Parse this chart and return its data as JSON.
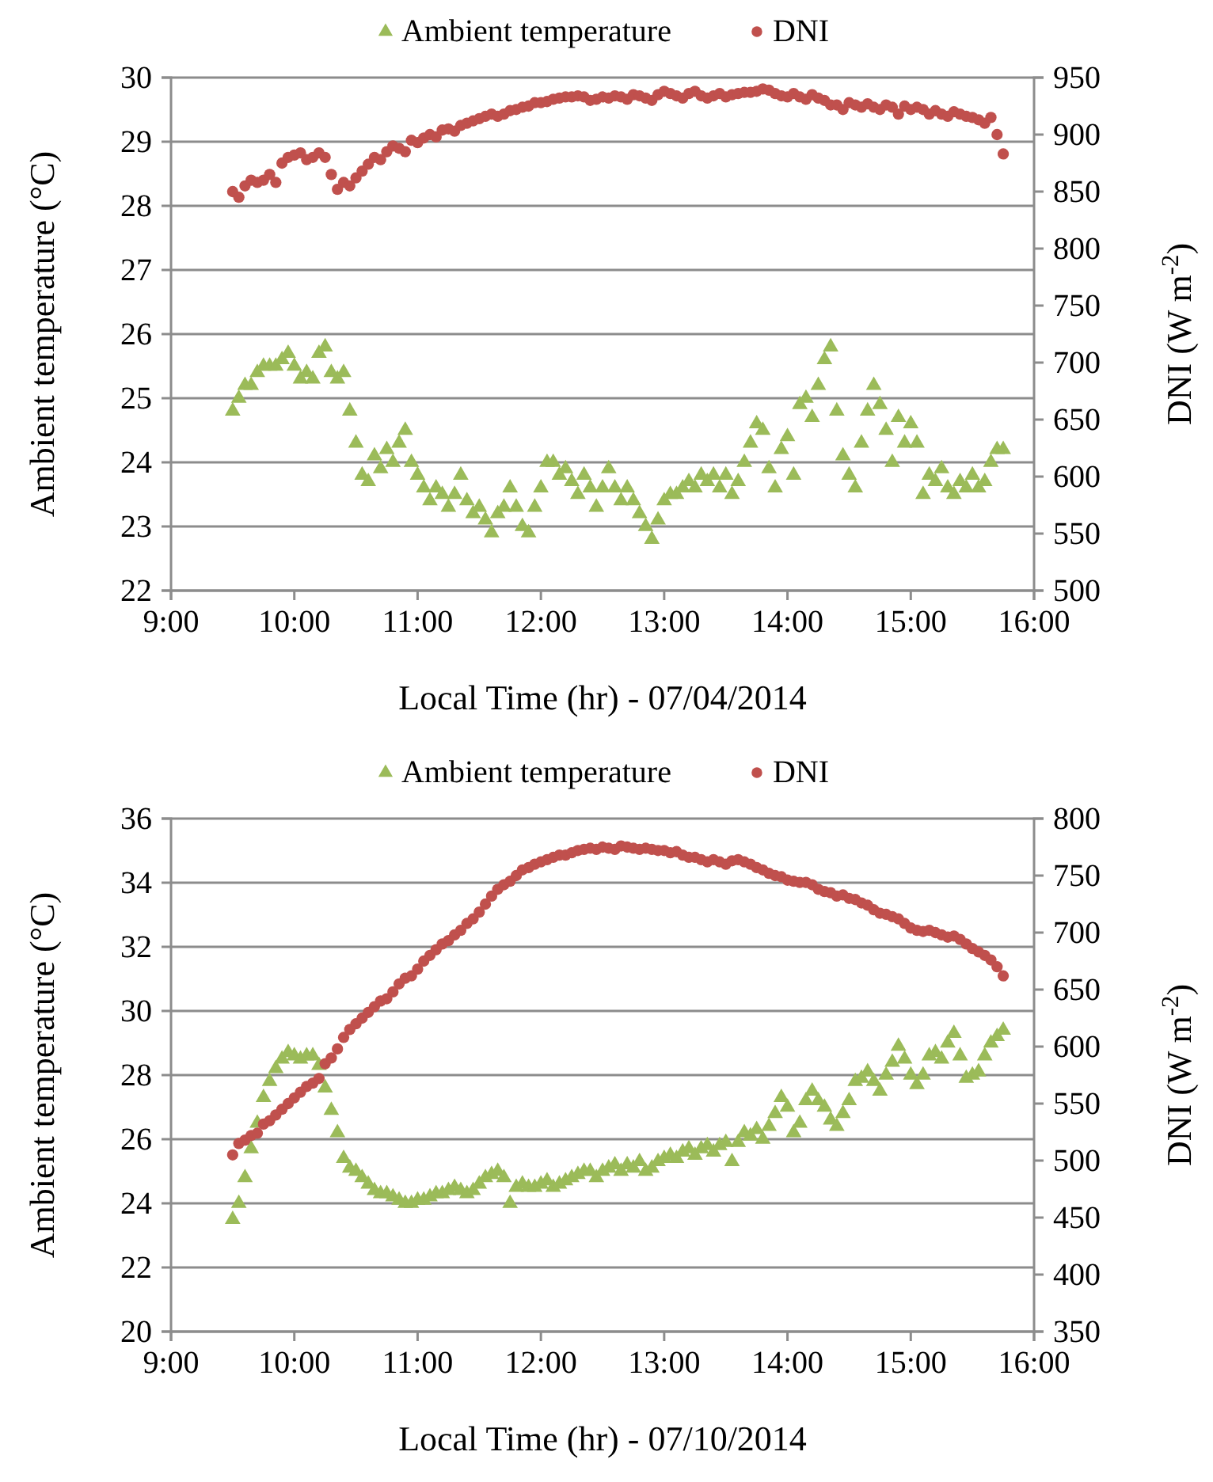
{
  "chart_data": [
    {
      "type": "scatter",
      "xlabel": "Local Time  (hr) - 07/04/2014",
      "ylabel": "Ambient temperature (°C)",
      "y2label": "DNI (W m$^{-2}$)",
      "xlim": [
        9,
        16
      ],
      "xticks": [
        {
          "value": 9,
          "label": "9:00"
        },
        {
          "value": 10,
          "label": "10:00"
        },
        {
          "value": 11,
          "label": "11:00"
        },
        {
          "value": 12,
          "label": "12:00"
        },
        {
          "value": 13,
          "label": "13:00"
        },
        {
          "value": 14,
          "label": "14:00"
        },
        {
          "value": 15,
          "label": "15:00"
        },
        {
          "value": 16,
          "label": "16:00"
        }
      ],
      "ylim": [
        22,
        30
      ],
      "yticks": [
        22,
        23,
        24,
        25,
        26,
        27,
        28,
        29,
        30
      ],
      "y2lim": [
        500,
        950
      ],
      "y2ticks": [
        500,
        550,
        600,
        650,
        700,
        750,
        800,
        850,
        900,
        950
      ],
      "grid": "y",
      "legend": "top",
      "x": [
        9.5,
        9.55,
        9.6,
        9.65,
        9.7,
        9.75,
        9.8,
        9.85,
        9.9,
        9.95,
        10,
        10.05,
        10.1,
        10.15,
        10.2,
        10.25,
        10.3,
        10.35,
        10.4,
        10.45,
        10.5,
        10.55,
        10.6,
        10.65,
        10.7,
        10.75,
        10.8,
        10.85,
        10.9,
        10.95,
        11,
        11.05,
        11.1,
        11.15,
        11.2,
        11.25,
        11.3,
        11.35,
        11.4,
        11.45,
        11.5,
        11.55,
        11.6,
        11.65,
        11.7,
        11.75,
        11.8,
        11.85,
        11.9,
        11.95,
        12,
        12.05,
        12.1,
        12.15,
        12.2,
        12.25,
        12.3,
        12.35,
        12.4,
        12.45,
        12.5,
        12.55,
        12.6,
        12.65,
        12.7,
        12.75,
        12.8,
        12.85,
        12.9,
        12.95,
        13,
        13.05,
        13.1,
        13.15,
        13.2,
        13.25,
        13.3,
        13.35,
        13.4,
        13.45,
        13.5,
        13.55,
        13.6,
        13.65,
        13.7,
        13.75,
        13.8,
        13.85,
        13.9,
        13.95,
        14,
        14.05,
        14.1,
        14.15,
        14.2,
        14.25,
        14.3,
        14.35,
        14.4,
        14.45,
        14.5,
        14.55,
        14.6,
        14.65,
        14.7,
        14.75,
        14.8,
        14.85,
        14.9,
        14.95,
        15,
        15.05,
        15.1,
        15.15,
        15.2,
        15.25,
        15.3,
        15.35,
        15.4,
        15.45,
        15.5,
        15.55,
        15.6,
        15.65,
        15.7,
        15.75
      ],
      "series": [
        {
          "name": "Ambient temperature",
          "color": "#9bbb59",
          "marker": "triangle",
          "values": [
            24.8,
            25.0,
            25.2,
            25.2,
            25.4,
            25.5,
            25.5,
            25.5,
            25.6,
            25.7,
            25.5,
            25.3,
            25.4,
            25.3,
            25.7,
            25.8,
            25.4,
            25.3,
            25.4,
            24.8,
            24.3,
            23.8,
            23.7,
            24.1,
            23.9,
            24.2,
            24.0,
            24.3,
            24.5,
            24.0,
            23.8,
            23.6,
            23.4,
            23.6,
            23.5,
            23.3,
            23.5,
            23.8,
            23.4,
            23.2,
            23.3,
            23.1,
            22.9,
            23.2,
            23.3,
            23.6,
            23.3,
            23.0,
            22.9,
            23.3,
            23.6,
            24.0,
            24.0,
            23.8,
            23.9,
            23.7,
            23.5,
            23.8,
            23.6,
            23.3,
            23.6,
            23.9,
            23.6,
            23.4,
            23.6,
            23.4,
            23.2,
            23.0,
            22.8,
            23.1,
            23.4,
            23.5,
            23.5,
            23.6,
            23.7,
            23.6,
            23.8,
            23.7,
            23.8,
            23.6,
            23.8,
            23.5,
            23.7,
            24.0,
            24.3,
            24.6,
            24.5,
            23.9,
            23.6,
            24.2,
            24.4,
            23.8,
            24.9,
            25.0,
            24.7,
            25.2,
            25.6,
            25.8,
            24.8,
            24.1,
            23.8,
            23.6,
            24.3,
            24.8,
            25.2,
            24.9,
            24.5,
            24.0,
            24.7,
            24.3,
            24.6,
            24.3,
            23.5,
            23.8,
            23.7,
            23.9,
            23.6,
            23.5,
            23.7,
            23.6,
            23.8,
            23.6,
            23.7,
            24.0,
            24.2,
            24.2
          ]
        },
        {
          "name": "DNI",
          "color": "#c0504d",
          "marker": "circle",
          "axis": "y2",
          "values": [
            850,
            845,
            855,
            860,
            858,
            860,
            865,
            858,
            875,
            880,
            882,
            884,
            878,
            880,
            884,
            880,
            865,
            852,
            858,
            855,
            862,
            868,
            874,
            880,
            878,
            885,
            890,
            888,
            885,
            895,
            893,
            897,
            900,
            898,
            904,
            905,
            903,
            908,
            910,
            912,
            914,
            916,
            918,
            916,
            918,
            921,
            922,
            924,
            925,
            928,
            928,
            929,
            931,
            932,
            933,
            933,
            934,
            933,
            930,
            931,
            933,
            932,
            934,
            933,
            931,
            935,
            934,
            932,
            930,
            935,
            938,
            936,
            934,
            932,
            936,
            938,
            934,
            932,
            934,
            936,
            933,
            935,
            936,
            937,
            937,
            938,
            940,
            939,
            936,
            934,
            933,
            936,
            933,
            931,
            935,
            932,
            930,
            926,
            926,
            922,
            928,
            926,
            924,
            927,
            924,
            922,
            926,
            924,
            918,
            925,
            922,
            924,
            922,
            918,
            921,
            918,
            916,
            920,
            918,
            916,
            915,
            913,
            910,
            915,
            900,
            883
          ]
        }
      ]
    },
    {
      "type": "scatter",
      "xlabel": "Local Time  (hr) - 07/10/2014",
      "ylabel": "Ambient temperature (°C)",
      "y2label": "DNI (W m$^{-2}$)",
      "xlim": [
        9,
        16
      ],
      "xticks": [
        {
          "value": 9,
          "label": "9:00"
        },
        {
          "value": 10,
          "label": "10:00"
        },
        {
          "value": 11,
          "label": "11:00"
        },
        {
          "value": 12,
          "label": "12:00"
        },
        {
          "value": 13,
          "label": "13:00"
        },
        {
          "value": 14,
          "label": "14:00"
        },
        {
          "value": 15,
          "label": "15:00"
        },
        {
          "value": 16,
          "label": "16:00"
        }
      ],
      "ylim": [
        20,
        36
      ],
      "yticks": [
        20,
        22,
        24,
        26,
        28,
        30,
        32,
        34,
        36
      ],
      "y2lim": [
        350,
        800
      ],
      "y2ticks": [
        350,
        400,
        450,
        500,
        550,
        600,
        650,
        700,
        750,
        800
      ],
      "grid": "y",
      "legend": "top",
      "x": [
        9.5,
        9.55,
        9.6,
        9.65,
        9.7,
        9.75,
        9.8,
        9.85,
        9.9,
        9.95,
        10,
        10.05,
        10.1,
        10.15,
        10.2,
        10.25,
        10.3,
        10.35,
        10.4,
        10.45,
        10.5,
        10.55,
        10.6,
        10.65,
        10.7,
        10.75,
        10.8,
        10.85,
        10.9,
        10.95,
        11,
        11.05,
        11.1,
        11.15,
        11.2,
        11.25,
        11.3,
        11.35,
        11.4,
        11.45,
        11.5,
        11.55,
        11.6,
        11.65,
        11.7,
        11.75,
        11.8,
        11.85,
        11.9,
        11.95,
        12,
        12.05,
        12.1,
        12.15,
        12.2,
        12.25,
        12.3,
        12.35,
        12.4,
        12.45,
        12.5,
        12.55,
        12.6,
        12.65,
        12.7,
        12.75,
        12.8,
        12.85,
        12.9,
        12.95,
        13,
        13.05,
        13.1,
        13.15,
        13.2,
        13.25,
        13.3,
        13.35,
        13.4,
        13.45,
        13.5,
        13.55,
        13.6,
        13.65,
        13.7,
        13.75,
        13.8,
        13.85,
        13.9,
        13.95,
        14,
        14.05,
        14.1,
        14.15,
        14.2,
        14.25,
        14.3,
        14.35,
        14.4,
        14.45,
        14.5,
        14.55,
        14.6,
        14.65,
        14.7,
        14.75,
        14.8,
        14.85,
        14.9,
        14.95,
        15,
        15.05,
        15.1,
        15.15,
        15.2,
        15.25,
        15.3,
        15.35,
        15.4,
        15.45,
        15.5,
        15.55,
        15.6,
        15.65,
        15.7,
        15.75
      ],
      "series": [
        {
          "name": "Ambient temperature",
          "color": "#9bbb59",
          "marker": "triangle",
          "values": [
            23.5,
            24.0,
            24.8,
            25.7,
            26.5,
            27.3,
            27.8,
            28.2,
            28.5,
            28.7,
            28.6,
            28.5,
            28.6,
            28.6,
            28.3,
            27.6,
            26.9,
            26.2,
            25.4,
            25.1,
            25.0,
            24.8,
            24.6,
            24.4,
            24.3,
            24.3,
            24.2,
            24.1,
            24.0,
            24.0,
            24.1,
            24.1,
            24.2,
            24.3,
            24.3,
            24.4,
            24.5,
            24.4,
            24.3,
            24.4,
            24.6,
            24.8,
            24.9,
            25.0,
            24.8,
            24.0,
            24.5,
            24.6,
            24.5,
            24.5,
            24.6,
            24.7,
            24.5,
            24.6,
            24.7,
            24.8,
            24.9,
            25.0,
            25.0,
            24.8,
            25.0,
            25.1,
            25.2,
            25.0,
            25.2,
            25.1,
            25.3,
            25.0,
            25.1,
            25.3,
            25.4,
            25.5,
            25.4,
            25.6,
            25.7,
            25.5,
            25.7,
            25.8,
            25.6,
            25.8,
            25.9,
            25.3,
            25.9,
            26.2,
            26.1,
            26.3,
            26.0,
            26.4,
            26.8,
            27.3,
            27.0,
            26.2,
            26.5,
            27.2,
            27.5,
            27.2,
            27.0,
            26.6,
            26.4,
            26.8,
            27.2,
            27.8,
            27.9,
            28.1,
            27.8,
            27.5,
            28.0,
            28.4,
            28.9,
            28.5,
            28.0,
            27.7,
            28.0,
            28.6,
            28.7,
            28.5,
            29.0,
            29.3,
            28.6,
            27.9,
            28.0,
            28.1,
            28.6,
            29.0,
            29.2,
            29.4
          ]
        },
        {
          "name": "DNI",
          "color": "#c0504d",
          "marker": "circle",
          "axis": "y2",
          "values": [
            505,
            515,
            518,
            522,
            524,
            532,
            535,
            540,
            545,
            550,
            555,
            560,
            565,
            568,
            572,
            585,
            590,
            598,
            608,
            615,
            620,
            625,
            630,
            635,
            640,
            642,
            648,
            655,
            660,
            662,
            668,
            675,
            680,
            685,
            690,
            693,
            698,
            702,
            708,
            712,
            718,
            725,
            732,
            738,
            742,
            745,
            750,
            755,
            757,
            760,
            762,
            764,
            766,
            768,
            768,
            770,
            772,
            773,
            774,
            773,
            775,
            774,
            773,
            776,
            775,
            774,
            773,
            774,
            773,
            772,
            772,
            770,
            771,
            768,
            766,
            766,
            764,
            762,
            764,
            762,
            760,
            763,
            764,
            762,
            760,
            757,
            755,
            752,
            750,
            749,
            746,
            745,
            744,
            744,
            742,
            738,
            736,
            735,
            732,
            733,
            730,
            729,
            726,
            724,
            720,
            717,
            716,
            714,
            712,
            708,
            704,
            702,
            701,
            702,
            700,
            698,
            696,
            697,
            694,
            690,
            686,
            683,
            680,
            676,
            670,
            662
          ]
        }
      ]
    }
  ]
}
